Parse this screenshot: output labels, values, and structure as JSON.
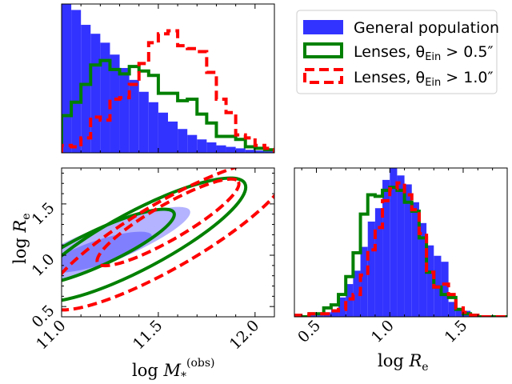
{
  "colors": {
    "population": "#3333ff",
    "population_edge": "#2a2aff",
    "population_contour_outer": "#b3b3ff",
    "population_contour_inner": "#8080ff",
    "lenses05": "#008000",
    "lenses10": "#ff0000",
    "axes": "#000000"
  },
  "legend": {
    "population": "General population",
    "lenses05": "Lenses, θ_Ein > 0.5″",
    "lenses10": "Lenses, θ_Ein > 1.0″"
  },
  "chart_data": [
    {
      "panel": "mass-histogram",
      "type": "bar",
      "xlim": [
        11.0,
        12.1
      ],
      "bin_edges": [
        11.0,
        11.05,
        11.1,
        11.15,
        11.2,
        11.25,
        11.3,
        11.35,
        11.4,
        11.45,
        11.5,
        11.55,
        11.6,
        11.65,
        11.7,
        11.75,
        11.8,
        11.85,
        11.9,
        11.95,
        12.0,
        12.05,
        12.1
      ],
      "series": [
        {
          "name": "General population",
          "style": "filled",
          "values": [
            1.0,
            0.96,
            0.86,
            0.8,
            0.74,
            0.66,
            0.57,
            0.49,
            0.41,
            0.34,
            0.27,
            0.21,
            0.16,
            0.12,
            0.09,
            0.07,
            0.05,
            0.04,
            0.03,
            0.02,
            0.015,
            0.01
          ]
        },
        {
          "name": "Lenses, θ_Ein > 0.5″",
          "style": "solid",
          "values": [
            0.25,
            0.34,
            0.46,
            0.59,
            0.62,
            0.56,
            0.53,
            0.58,
            0.55,
            0.52,
            0.4,
            0.4,
            0.35,
            0.36,
            0.26,
            0.2,
            0.11,
            0.11,
            0.09,
            0.04,
            0.03,
            0.02
          ]
        },
        {
          "name": "Lenses, θ_Ein > 1.0″",
          "style": "dashed",
          "values": [
            0.05,
            0.04,
            0.1,
            0.24,
            0.22,
            0.36,
            0.37,
            0.46,
            0.6,
            0.74,
            0.8,
            0.82,
            0.72,
            0.7,
            0.68,
            0.54,
            0.36,
            0.27,
            0.12,
            0.1,
            0.05,
            0.03
          ]
        }
      ]
    },
    {
      "panel": "joint-contours",
      "type": "contour",
      "xlabel": "log M*^(obs)",
      "ylabel": "log Re",
      "xlim": [
        11.0,
        12.1
      ],
      "ylim": [
        0.4,
        1.85
      ],
      "xticks": [
        "11.0",
        "11.5",
        "12.0"
      ],
      "yticks": [
        "0.5",
        "1.0",
        "1.5"
      ],
      "xtick_values": [
        11.0,
        11.5,
        12.0
      ],
      "ytick_values": [
        0.5,
        1.0,
        1.5
      ],
      "contours": [
        {
          "name": "General population",
          "level": "outer",
          "center": [
            11.2,
            1.08
          ],
          "semi_axes": [
            0.5,
            0.18
          ],
          "angle_deg": 22
        },
        {
          "name": "General population",
          "level": "inner",
          "center": [
            11.2,
            1.03
          ],
          "semi_axes": [
            0.28,
            0.12
          ],
          "angle_deg": 18
        },
        {
          "name": "Lenses, θ_Ein > 0.5″",
          "level": "outer",
          "center": [
            11.4,
            1.15
          ],
          "semi_axes": [
            0.62,
            0.28
          ],
          "angle_deg": 28
        },
        {
          "name": "Lenses, θ_Ein > 0.5″",
          "level": "inner",
          "center": [
            11.2,
            1.08
          ],
          "semi_axes": [
            0.42,
            0.17
          ],
          "angle_deg": 25
        },
        {
          "name": "Lenses, θ_Ein > 1.0″",
          "level": "outer",
          "center": [
            11.55,
            1.2
          ],
          "semi_axes": [
            0.72,
            0.32
          ],
          "angle_deg": 30
        },
        {
          "name": "Lenses, θ_Ein > 1.0″",
          "level": "inner",
          "center": [
            11.55,
            1.32
          ],
          "semi_axes": [
            0.42,
            0.17
          ],
          "angle_deg": 30
        }
      ]
    },
    {
      "panel": "size-histogram",
      "type": "bar",
      "xlabel": "log Re",
      "xlim": [
        0.35,
        1.8
      ],
      "xticks": [
        "0.5",
        "1.0",
        "1.5"
      ],
      "xtick_values": [
        0.5,
        1.0,
        1.5
      ],
      "bin_edges": [
        0.35,
        0.45,
        0.55,
        0.6,
        0.65,
        0.7,
        0.75,
        0.8,
        0.85,
        0.9,
        0.95,
        1.0,
        1.05,
        1.1,
        1.15,
        1.2,
        1.25,
        1.3,
        1.35,
        1.4,
        1.45,
        1.5,
        1.55,
        1.6,
        1.65,
        1.7,
        1.8
      ],
      "series": [
        {
          "name": "General population",
          "style": "filled",
          "values": [
            0.0,
            0.01,
            0.03,
            0.05,
            0.13,
            0.22,
            0.31,
            0.47,
            0.64,
            0.73,
            0.92,
            1.0,
            0.95,
            0.89,
            0.77,
            0.63,
            0.48,
            0.41,
            0.37,
            0.1,
            0.06,
            0.04,
            0.02,
            0.01,
            0.0,
            0.0
          ]
        },
        {
          "name": "Lenses, θ_Ein > 0.5″",
          "style": "solid",
          "values": [
            0.0,
            0.02,
            0.06,
            0.08,
            0.15,
            0.27,
            0.43,
            0.69,
            0.82,
            0.81,
            0.85,
            0.87,
            0.85,
            0.77,
            0.71,
            0.53,
            0.3,
            0.2,
            0.15,
            0.13,
            0.05,
            0.02,
            0.01,
            0.0,
            0.0,
            0.0
          ]
        },
        {
          "name": "Lenses, θ_Ein > 1.0″",
          "style": "dashed",
          "values": [
            0.01,
            0.02,
            0.02,
            0.04,
            0.05,
            0.12,
            0.15,
            0.28,
            0.45,
            0.6,
            0.78,
            0.86,
            0.9,
            0.82,
            0.72,
            0.56,
            0.3,
            0.2,
            0.22,
            0.15,
            0.06,
            0.03,
            0.01,
            0.0,
            0.0,
            0.0
          ]
        }
      ]
    }
  ]
}
